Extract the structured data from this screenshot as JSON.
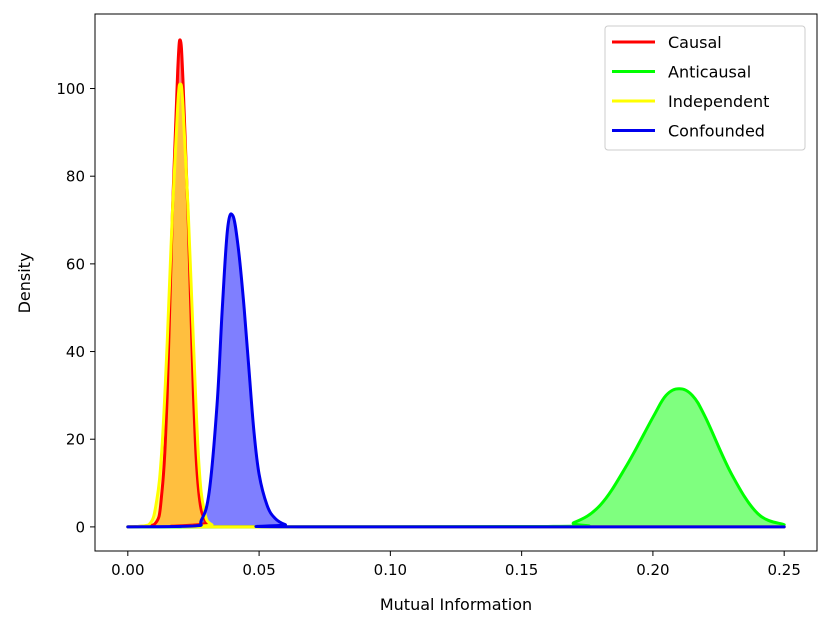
{
  "chart_data": {
    "type": "area",
    "title": "",
    "xlabel": "Mutual Information",
    "ylabel": "Density",
    "xlim": [
      -0.0125,
      0.2625
    ],
    "ylim": [
      -5.5,
      117
    ],
    "xticks": [
      0.0,
      0.05,
      0.1,
      0.15,
      0.2,
      0.25
    ],
    "xtick_labels": [
      "0.00",
      "0.05",
      "0.10",
      "0.15",
      "0.20",
      "0.25"
    ],
    "yticks": [
      0,
      20,
      40,
      60,
      80,
      100
    ],
    "ytick_labels": [
      "0",
      "20",
      "40",
      "60",
      "80",
      "100"
    ],
    "grid": false,
    "legend_position": "top-right",
    "series": [
      {
        "name": "Causal",
        "color": "#ff0000",
        "fill": "#ff0000",
        "x": [
          0.0,
          0.01,
          0.013,
          0.015,
          0.017,
          0.019,
          0.02,
          0.021,
          0.023,
          0.025,
          0.027,
          0.03,
          0.035,
          0.25
        ],
        "values": [
          0,
          0.5,
          8,
          30,
          72,
          104,
          111,
          102,
          70,
          30,
          8,
          1,
          0,
          0
        ]
      },
      {
        "name": "Anticausal",
        "color": "#00ff00",
        "fill": "#00ff00",
        "x": [
          0.0,
          0.16,
          0.17,
          0.18,
          0.19,
          0.2,
          0.205,
          0.21,
          0.215,
          0.22,
          0.23,
          0.24,
          0.25
        ],
        "values": [
          0,
          0.1,
          1,
          5,
          14,
          25,
          30,
          31.5,
          30,
          25,
          12,
          3,
          0.5
        ]
      },
      {
        "name": "Independent",
        "color": "#ffff00",
        "fill": "#ffff00",
        "x": [
          0.0,
          0.008,
          0.011,
          0.013,
          0.015,
          0.017,
          0.019,
          0.02,
          0.021,
          0.023,
          0.025,
          0.027,
          0.029,
          0.032,
          0.04,
          0.25
        ],
        "values": [
          0,
          0.5,
          6,
          18,
          42,
          72,
          96,
          101,
          96,
          72,
          42,
          15,
          4,
          0.5,
          0,
          0
        ]
      },
      {
        "name": "Confounded",
        "color": "#0000ee",
        "fill": "#0000ff",
        "x": [
          0.0,
          0.025,
          0.028,
          0.031,
          0.034,
          0.036,
          0.038,
          0.04,
          0.042,
          0.044,
          0.046,
          0.048,
          0.05,
          0.053,
          0.056,
          0.06,
          0.065,
          0.25
        ],
        "values": [
          0,
          0.2,
          1.5,
          8,
          28,
          50,
          68,
          71,
          64,
          52,
          37,
          22,
          12,
          5,
          2,
          0.5,
          0,
          0
        ]
      }
    ]
  }
}
